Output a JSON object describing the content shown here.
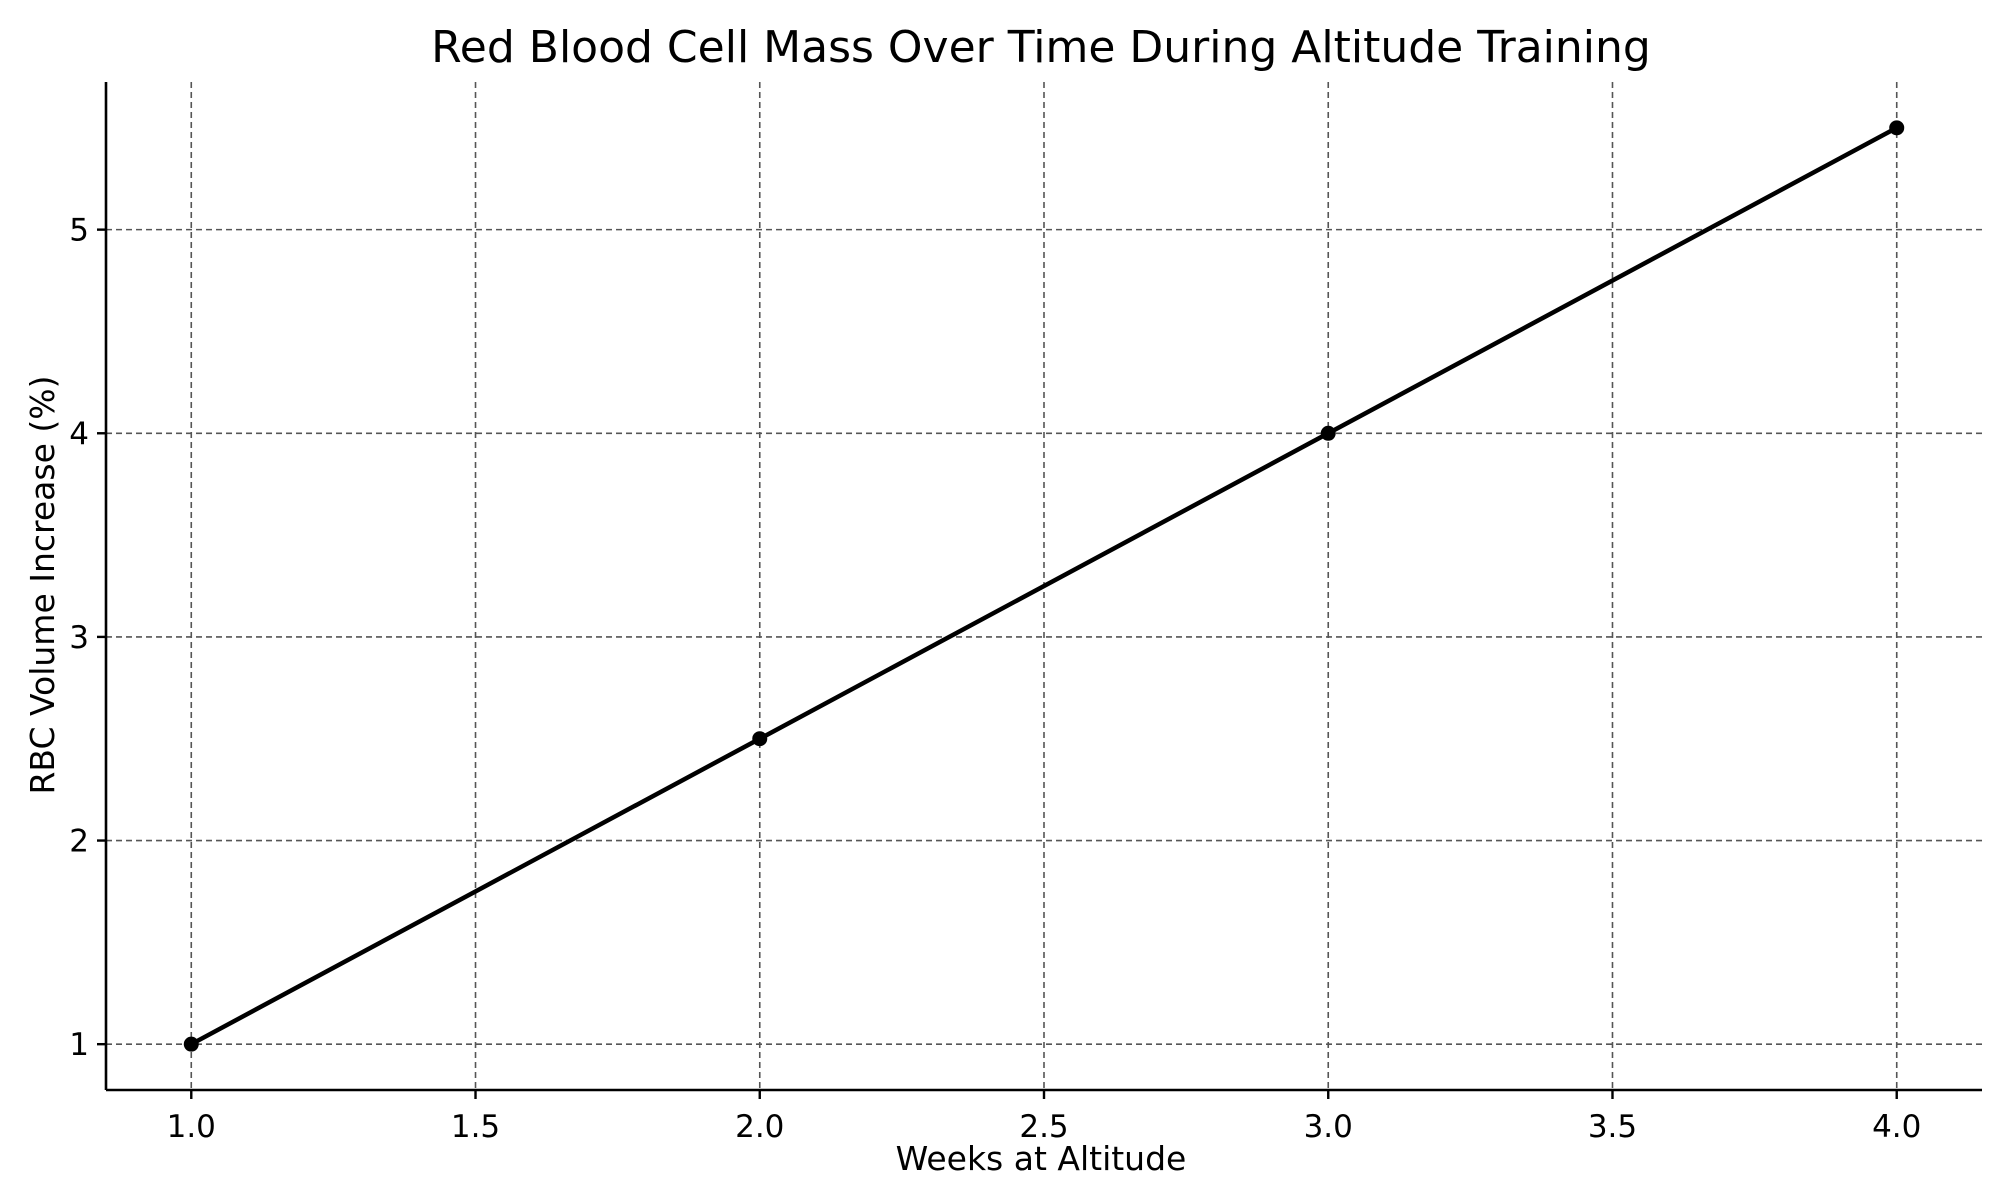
{
  "chart_data": {
    "type": "line",
    "title": "Red Blood Cell Mass Over Time During Altitude Training",
    "xlabel": "Weeks at Altitude",
    "ylabel": "RBC Volume Increase (%)",
    "x": [
      1.0,
      2.0,
      3.0,
      4.0
    ],
    "series": [
      {
        "values": [
          1.0,
          2.5,
          4.0,
          5.5
        ],
        "color": "#000000",
        "marker": "circle"
      }
    ],
    "xlim": [
      0.85,
      4.15
    ],
    "ylim": [
      0.775,
      5.725
    ],
    "x_ticks": [
      1.0,
      1.5,
      2.0,
      2.5,
      3.0,
      3.5,
      4.0
    ],
    "x_tick_labels": [
      "1.0",
      "1.5",
      "2.0",
      "2.5",
      "3.0",
      "3.5",
      "4.0"
    ],
    "y_ticks": [
      1,
      2,
      3,
      4,
      5
    ],
    "y_tick_labels": [
      "1",
      "2",
      "3",
      "4",
      "5"
    ],
    "grid": true,
    "grid_style": "dashed",
    "legend": "none"
  }
}
